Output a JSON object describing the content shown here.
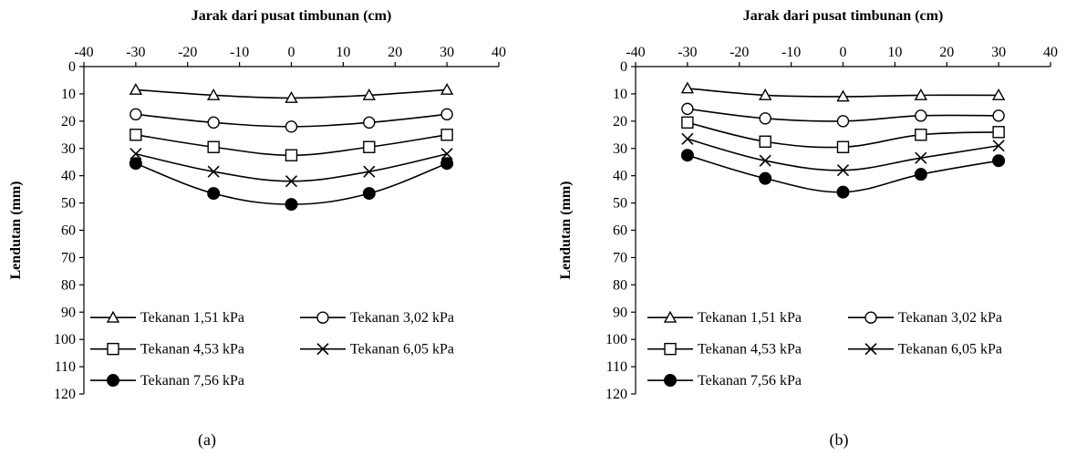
{
  "chart_data": [
    {
      "type": "line",
      "caption": "(a)",
      "xlabel": "Jarak dari pusat timbunan (cm)",
      "ylabel": "Lendutan (mm)",
      "xlim": [
        -40,
        40
      ],
      "ylim": [
        0,
        120
      ],
      "y_inverted": true,
      "x_axis_position": "top",
      "xticks": [
        -40,
        -30,
        -20,
        -10,
        0,
        10,
        20,
        30,
        40
      ],
      "yticks": [
        0,
        10,
        20,
        30,
        40,
        50,
        60,
        70,
        80,
        90,
        100,
        110,
        120
      ],
      "grid": false,
      "legend_position": "bottom-inside",
      "x": [
        -30,
        -15,
        0,
        15,
        30
      ],
      "series": [
        {
          "name": "Tekanan 1,51 kPa",
          "marker": "triangle",
          "values": [
            8.5,
            10.5,
            11.5,
            10.5,
            8.5
          ]
        },
        {
          "name": "Tekanan 3,02 kPa",
          "marker": "circle-open",
          "values": [
            17.5,
            20.5,
            22,
            20.5,
            17.5
          ]
        },
        {
          "name": "Tekanan 4,53 kPa",
          "marker": "square",
          "values": [
            25,
            29.5,
            32.5,
            29.5,
            25
          ]
        },
        {
          "name": "Tekanan 6,05 kPa",
          "marker": "x",
          "values": [
            32,
            38.5,
            42,
            38.5,
            32
          ]
        },
        {
          "name": "Tekanan 7,56 kPa",
          "marker": "circle-filled",
          "values": [
            35.5,
            46.5,
            50.5,
            46.5,
            35.5
          ]
        }
      ]
    },
    {
      "type": "line",
      "caption": "(b)",
      "xlabel": "Jarak dari pusat timbunan (cm)",
      "ylabel": "Lendutan (mm)",
      "xlim": [
        -40,
        40
      ],
      "ylim": [
        0,
        120
      ],
      "y_inverted": true,
      "x_axis_position": "top",
      "xticks": [
        -40,
        -30,
        -20,
        -10,
        0,
        10,
        20,
        30,
        40
      ],
      "yticks": [
        0,
        10,
        20,
        30,
        40,
        50,
        60,
        70,
        80,
        90,
        100,
        110,
        120
      ],
      "grid": false,
      "legend_position": "bottom-inside",
      "x": [
        -30,
        -15,
        0,
        15,
        30
      ],
      "series": [
        {
          "name": "Tekanan 1,51 kPa",
          "marker": "triangle",
          "values": [
            8,
            10.5,
            11,
            10.5,
            10.5
          ]
        },
        {
          "name": "Tekanan 3,02 kPa",
          "marker": "circle-open",
          "values": [
            15.5,
            19,
            20,
            18,
            18
          ]
        },
        {
          "name": "Tekanan 4,53 kPa",
          "marker": "square",
          "values": [
            20.5,
            27.5,
            29.5,
            25,
            24
          ]
        },
        {
          "name": "Tekanan 6,05 kPa",
          "marker": "x",
          "values": [
            26.5,
            34.5,
            38,
            33.5,
            29
          ]
        },
        {
          "name": "Tekanan 7,56 kPa",
          "marker": "circle-filled",
          "values": [
            32.5,
            41,
            46,
            39.5,
            34.5
          ]
        }
      ]
    }
  ]
}
